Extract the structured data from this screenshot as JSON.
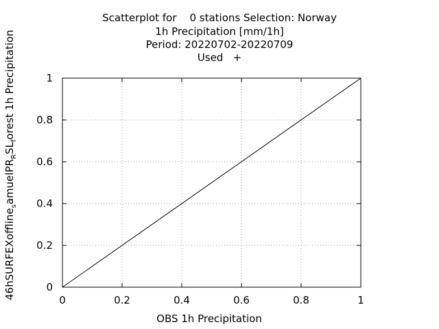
{
  "chart_data": {
    "type": "scatter",
    "title_lines": [
      "Scatterplot for    0 stations Selection: Norway",
      "1h Precipitation [mm/1h]",
      "Period: 20220702-20220709",
      "Used   +"
    ],
    "xlabel": "OBS 1h Precipitation",
    "ylabel": "46hSURFEXoffline_samuelPR_RSL_forest 1h Precipitation",
    "xlim": [
      0,
      1
    ],
    "ylim": [
      0,
      1
    ],
    "xticks": [
      "0",
      "0.2",
      "0.4",
      "0.6",
      "0.8",
      "1"
    ],
    "yticks": [
      "0",
      "0.2",
      "0.4",
      "0.6",
      "0.8",
      "1"
    ],
    "grid": true,
    "series": [],
    "reference_line": {
      "x": [
        0,
        1
      ],
      "y": [
        0,
        1
      ]
    }
  }
}
